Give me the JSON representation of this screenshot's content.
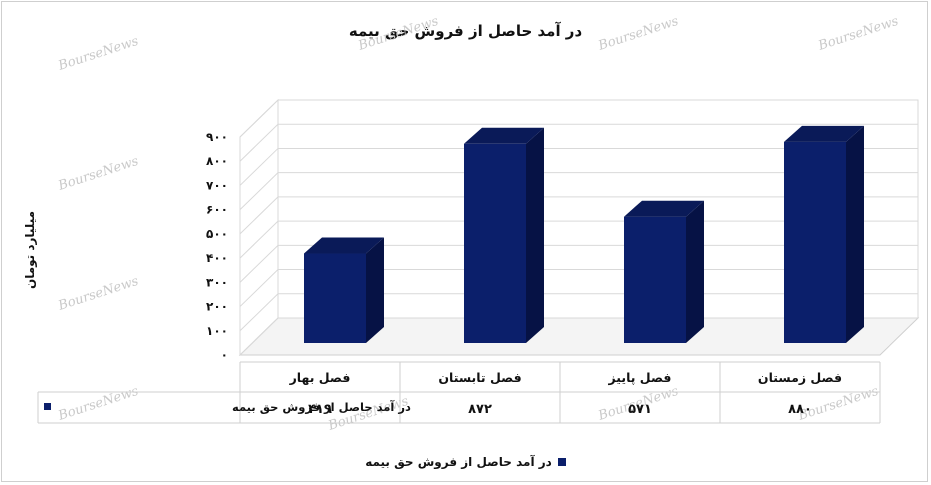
{
  "chart_data": {
    "type": "bar",
    "title": "در آمد حاصل از فروش حق بیمه",
    "ylabel": "میلیارد تومان",
    "categories": [
      "فصل بهار",
      "فصل تابستان",
      "فصل پاییز",
      "فصل زمستان"
    ],
    "series": [
      {
        "name": "در آمد حاصل از فروش حق بیمه",
        "values": [
          419,
          872,
          571,
          880
        ],
        "value_labels": [
          "۴۱۹",
          "۸۷۲",
          "۵۷۱",
          "۸۸۰"
        ]
      }
    ],
    "ylim": [
      0,
      900
    ],
    "yticks": [
      0,
      100,
      200,
      300,
      400,
      500,
      600,
      700,
      800,
      900
    ],
    "ytick_labels": [
      "۰",
      "۱۰۰",
      "۲۰۰",
      "۳۰۰",
      "۴۰۰",
      "۵۰۰",
      "۶۰۰",
      "۷۰۰",
      "۸۰۰",
      "۹۰۰"
    ],
    "grid": true,
    "legend_position": "bottom",
    "data_table": true,
    "bar_color": "#0b1f6b",
    "watermark": "BourseNews"
  }
}
